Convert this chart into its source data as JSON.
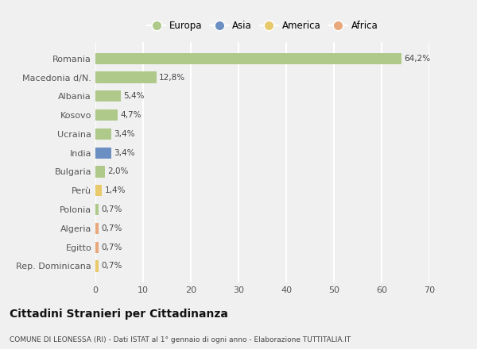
{
  "categories": [
    "Romania",
    "Macedonia d/N.",
    "Albania",
    "Kosovo",
    "Ucraina",
    "India",
    "Bulgaria",
    "Perù",
    "Polonia",
    "Algeria",
    "Egitto",
    "Rep. Dominicana"
  ],
  "values": [
    64.2,
    12.8,
    5.4,
    4.7,
    3.4,
    3.4,
    2.0,
    1.4,
    0.7,
    0.7,
    0.7,
    0.7
  ],
  "labels": [
    "64,2%",
    "12,8%",
    "5,4%",
    "4,7%",
    "3,4%",
    "3,4%",
    "2,0%",
    "1,4%",
    "0,7%",
    "0,7%",
    "0,7%",
    "0,7%"
  ],
  "colors": [
    "#aec98a",
    "#aec98a",
    "#aec98a",
    "#aec98a",
    "#aec98a",
    "#6b8fc2",
    "#aec98a",
    "#e8c96b",
    "#aec98a",
    "#e8a87c",
    "#e8a87c",
    "#e8c96b"
  ],
  "legend_labels": [
    "Europa",
    "Asia",
    "America",
    "Africa"
  ],
  "legend_colors": [
    "#aec98a",
    "#6b8fc2",
    "#e8c96b",
    "#e8a87c"
  ],
  "xlim": [
    0,
    70
  ],
  "xticks": [
    0,
    10,
    20,
    30,
    40,
    50,
    60,
    70
  ],
  "title": "Cittadini Stranieri per Cittadinanza",
  "subtitle": "COMUNE DI LEONESSA (RI) - Dati ISTAT al 1° gennaio di ogni anno - Elaborazione TUTTITALIA.IT",
  "bg_color": "#f0f0f0",
  "grid_color": "#ffffff",
  "bar_height": 0.6
}
